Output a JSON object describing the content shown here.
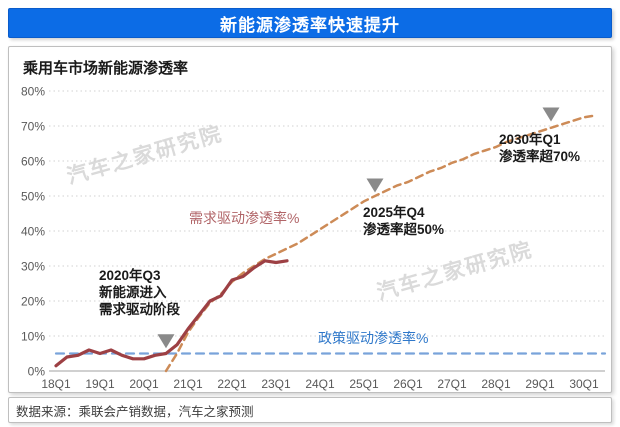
{
  "header": {
    "title": "新能源渗透率快速提升"
  },
  "footer": {
    "source": "数据来源：乘联会产销数据，汽车之家预测"
  },
  "watermark": {
    "text": "汽车之家研究院"
  },
  "colors": {
    "banner_bg": "#0c6ce6",
    "banner_text": "#ffffff",
    "actual_line": "#9d4044",
    "forecast_line": "#cd8b57",
    "policy_line": "#79a3da",
    "demand_label_text": "#b16568",
    "policy_label_text": "#2f78ca",
    "annotation_text": "#1a1a1a",
    "marker": "#8a8a8a",
    "watermark": "#dadada"
  },
  "chart_data": {
    "type": "line",
    "title": "乘用车市场新能源渗透率",
    "xlabel": "",
    "ylabel": "",
    "ylim": [
      0,
      80
    ],
    "y_ticks": [
      0,
      10,
      20,
      30,
      40,
      50,
      60,
      70,
      80
    ],
    "y_tick_suffix": "%",
    "grid": "dotted-horizontal",
    "legend_position": "none",
    "x_tick_labels": [
      "18Q1",
      "19Q1",
      "20Q1",
      "21Q1",
      "22Q1",
      "23Q1",
      "24Q1",
      "25Q1",
      "26Q1",
      "27Q1",
      "28Q1",
      "29Q1",
      "30Q1"
    ],
    "series": [
      {
        "id": "demand-actual",
        "label": "",
        "style": "solid",
        "color": "#9d4044",
        "quarters": [
          "18Q1",
          "18Q2",
          "18Q3",
          "18Q4",
          "19Q1",
          "19Q2",
          "19Q3",
          "19Q4",
          "20Q1",
          "20Q2",
          "20Q3",
          "20Q4",
          "21Q1",
          "21Q2",
          "21Q3",
          "21Q4",
          "22Q1",
          "22Q2",
          "22Q3",
          "22Q4",
          "23Q1",
          "23Q2"
        ],
        "values": [
          1.5,
          4,
          4.5,
          6,
          5,
          6,
          4.5,
          3.5,
          3.5,
          4.5,
          5,
          7.5,
          12,
          16,
          20,
          21.5,
          26,
          27,
          29.5,
          31.5,
          31,
          31.5
        ]
      },
      {
        "id": "demand-forecast",
        "label": "需求驱动渗透率%",
        "style": "dashed",
        "color": "#cd8b57",
        "points": [
          [
            "20Q3",
            0
          ],
          [
            "20Q4",
            5
          ],
          [
            "21Q1",
            11
          ],
          [
            "21Q2",
            15.5
          ],
          [
            "21Q3",
            19.5
          ],
          [
            "21Q4",
            22
          ],
          [
            "22Q1",
            25.5
          ],
          [
            "22Q2",
            28
          ],
          [
            "22Q3",
            30
          ],
          [
            "22Q4",
            32
          ],
          [
            "23Q1",
            33.5
          ],
          [
            "23Q2",
            35
          ],
          [
            "23Q3",
            36.5
          ],
          [
            "23Q4",
            38.5
          ],
          [
            "24Q1",
            40.5
          ],
          [
            "24Q2",
            42.5
          ],
          [
            "24Q3",
            44.5
          ],
          [
            "24Q4",
            46.5
          ],
          [
            "25Q1",
            48.5
          ],
          [
            "25Q2",
            50
          ],
          [
            "25Q3",
            51.5
          ],
          [
            "25Q4",
            53
          ],
          [
            "26Q1",
            54
          ],
          [
            "26Q2",
            55.5
          ],
          [
            "26Q3",
            57
          ],
          [
            "26Q4",
            58
          ],
          [
            "27Q1",
            59.5
          ],
          [
            "27Q2",
            60.5
          ],
          [
            "27Q3",
            62
          ],
          [
            "27Q4",
            63
          ],
          [
            "28Q1",
            64
          ],
          [
            "28Q2",
            65.5
          ],
          [
            "28Q3",
            66.5
          ],
          [
            "28Q4",
            67.5
          ],
          [
            "29Q1",
            68.5
          ],
          [
            "29Q2",
            69.5
          ],
          [
            "29Q3",
            70.5
          ],
          [
            "29Q4",
            71.5
          ],
          [
            "30Q1",
            72.5
          ],
          [
            "30Q2",
            73
          ]
        ]
      },
      {
        "id": "policy",
        "label": "政策驱动渗透率%",
        "style": "dashed-horizontal",
        "color": "#79a3da",
        "value": 5
      }
    ],
    "annotations": [
      {
        "lines": [
          "2020年Q3",
          "新能源进入",
          "需求驱动阶段"
        ],
        "marker": "triangle-down",
        "marker_x": "20Q3",
        "marker_y": 6.5
      },
      {
        "lines": [
          "2025年Q4",
          "渗透率超50%"
        ],
        "marker": "triangle-down",
        "marker_x": "25Q2",
        "marker_y": 51
      },
      {
        "lines": [
          "2030年Q1",
          "渗透率超70%"
        ],
        "marker": "triangle-down",
        "marker_x": "29Q2",
        "marker_y": 71.3
      }
    ]
  }
}
